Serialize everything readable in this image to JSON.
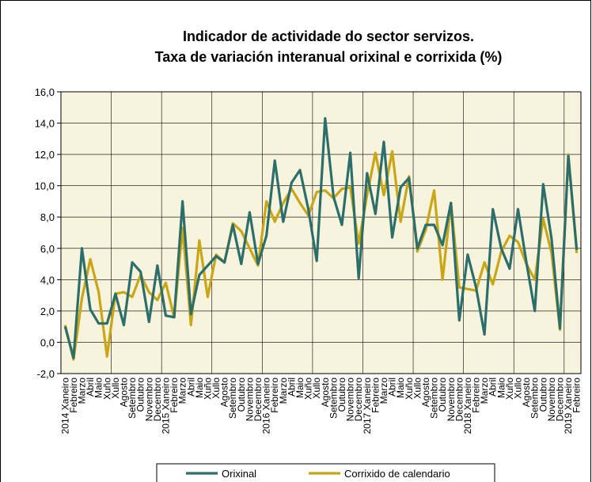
{
  "chart_data": {
    "type": "line",
    "title": [
      "Indicador de actividade do sector servizos.",
      "Taxa de variación interanual orixinal e corrixida (%)"
    ],
    "categories": [
      "2014 Xaneiro",
      "Febreiro",
      "Marzo",
      "Abril",
      "Maio",
      "Xuño",
      "Xullo",
      "Agosto",
      "Setembro",
      "Outubro",
      "Novembro",
      "Decembro",
      "2015 Xaneiro",
      "Febreiro",
      "Marzo",
      "Abril",
      "Maio",
      "Xuño",
      "Xullo",
      "Agosto",
      "Setembro",
      "Outubro",
      "Novembro",
      "Decembro",
      "2016 Xaneiro",
      "Febreiro",
      "Marzo",
      "Abril",
      "Maio",
      "Xuño",
      "Xullo",
      "Agosto",
      "Setembro",
      "Outubro",
      "Novembro",
      "Decembro",
      "2017 Xaneiro",
      "Febreiro",
      "Marzo",
      "Abril",
      "Maio",
      "Xuño",
      "Xullo",
      "Agosto",
      "Setembro",
      "Outubro",
      "Novembro",
      "Decembro",
      "2018 Xaneiro",
      "Febreiro",
      "Marzo",
      "Abril",
      "Maio",
      "Xuño",
      "Xullo",
      "Agosto",
      "Setembro",
      "Outubro",
      "Novembro",
      "Decembro",
      "2019 Xaneiro",
      "Febreiro"
    ],
    "series": [
      {
        "name": "Orixinal",
        "color": "#2b6e6a",
        "values": [
          1.0,
          -1.0,
          6.0,
          2.1,
          1.2,
          1.2,
          3.1,
          1.1,
          5.1,
          4.5,
          1.3,
          4.9,
          1.7,
          1.6,
          9.0,
          1.8,
          4.3,
          4.9,
          5.5,
          5.1,
          7.5,
          5.0,
          8.3,
          5.0,
          6.8,
          11.6,
          7.7,
          10.2,
          11.0,
          8.5,
          5.2,
          14.3,
          9.3,
          7.5,
          12.1,
          4.1,
          10.8,
          8.2,
          12.8,
          6.7,
          9.9,
          10.5,
          6.0,
          7.5,
          7.5,
          6.2,
          8.9,
          1.4,
          5.6,
          3.5,
          0.5,
          8.5,
          6.0,
          4.7,
          8.5,
          5.1,
          2.0,
          10.1,
          6.6,
          0.9,
          11.9,
          5.9
        ]
      },
      {
        "name": "Corrixido de calendario",
        "color": "#c9a616",
        "values": [
          1.1,
          -1.1,
          2.8,
          5.3,
          3.2,
          -0.9,
          3.1,
          3.2,
          2.9,
          4.3,
          3.2,
          2.7,
          3.8,
          1.6,
          7.3,
          1.1,
          6.5,
          2.9,
          5.6,
          5.1,
          7.6,
          7.1,
          6.0,
          4.9,
          9.0,
          7.7,
          8.9,
          9.8,
          8.9,
          8.1,
          9.6,
          9.7,
          9.2,
          9.8,
          9.9,
          6.3,
          9.4,
          12.1,
          9.4,
          12.2,
          7.7,
          10.6,
          5.8,
          7.2,
          9.7,
          4.0,
          8.9,
          3.5,
          3.4,
          3.3,
          5.1,
          3.7,
          5.8,
          6.8,
          6.4,
          5.0,
          4.0,
          7.9,
          5.7,
          0.8,
          12.0,
          5.7
        ]
      }
    ],
    "ylim": [
      -2,
      16
    ],
    "yticks": [
      {
        "value": -2,
        "label": "-2,0"
      },
      {
        "value": 0,
        "label": "0,0"
      },
      {
        "value": 2,
        "label": "2,0"
      },
      {
        "value": 4,
        "label": "4,0"
      },
      {
        "value": 6,
        "label": "6,0"
      },
      {
        "value": 8,
        "label": "8,0"
      },
      {
        "value": 10,
        "label": "10,0"
      },
      {
        "value": 12,
        "label": "12,0"
      },
      {
        "value": 14,
        "label": "14,0"
      },
      {
        "value": 16,
        "label": "16,0"
      }
    ],
    "grid": true,
    "legend": "bottom"
  }
}
